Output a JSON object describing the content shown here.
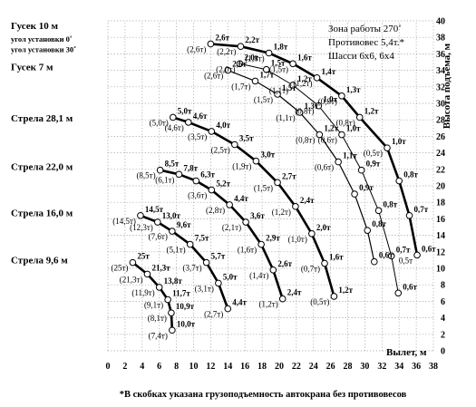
{
  "chart_data": {
    "type": "line",
    "title": "",
    "xlabel": "Вылет, м",
    "ylabel": "Высота подъема, м",
    "xlim": [
      0,
      38
    ],
    "ylim": [
      0,
      40
    ],
    "x_ticks": [
      0,
      2,
      4,
      6,
      8,
      10,
      12,
      14,
      16,
      18,
      20,
      22,
      24,
      26,
      28,
      30,
      32,
      34,
      36,
      38
    ],
    "y_ticks": [
      0,
      2,
      4,
      6,
      8,
      10,
      12,
      14,
      16,
      18,
      20,
      22,
      24,
      26,
      28,
      30,
      32,
      34,
      36,
      38,
      40
    ],
    "grid": "dotted",
    "info_lines": [
      "Зона работы 270˚",
      "Противовес 5,4т.*",
      "Шасси 6х6, 6х4"
    ],
    "footnote": "*В скобках указана грузоподъемность автокрана без противовесов",
    "boom_labels": [
      {
        "text": "Гусек 10 м",
        "y": 39
      },
      {
        "text": "угол установки 0˚",
        "y": 37.5
      },
      {
        "text": "угол установки 30˚",
        "y": 36.2
      },
      {
        "text": "Гусек 7 м",
        "y": 34
      },
      {
        "text": "Стрела 28,1 м",
        "y": 27.8
      },
      {
        "text": "Стрела 22,0 м",
        "y": 21.9
      },
      {
        "text": "Стрела 16,0 м",
        "y": 16.3
      },
      {
        "text": "Стрела 9,6 м",
        "y": 10.6
      }
    ],
    "series": [
      {
        "name": "Гусек 10 м, угол установки 0˚",
        "points": [
          {
            "x": 12,
            "y": 37.2,
            "label": "2,6т",
            "label2": "(2,6т)"
          },
          {
            "x": 15.5,
            "y": 36.9,
            "label": "2,2т",
            "label2": "(2,2т)"
          },
          {
            "x": 18.8,
            "y": 36.1,
            "label": "1,8т",
            "label2": "(1,8т)"
          },
          {
            "x": 21.6,
            "y": 34.8,
            "label": "1,6т",
            "label2": "(1,5т)"
          },
          {
            "x": 24.4,
            "y": 33.1,
            "label": "1,4т",
            "label2": "(1,2т)"
          },
          {
            "x": 27.3,
            "y": 30.9,
            "label": "1,3т",
            "label2": "(0,9т)"
          },
          {
            "x": 29.4,
            "y": 28.3,
            "label": "1,2т",
            "label2": "(0,8т)"
          },
          {
            "x": 32.6,
            "y": 24.6,
            "label": "1,0т",
            "label2": "(0,5т)"
          },
          {
            "x": 34.0,
            "y": 20.6,
            "label": "0,8т",
            "label2": ""
          },
          {
            "x": 35.2,
            "y": 16.4,
            "label": "0,7т",
            "label2": ""
          },
          {
            "x": 36.1,
            "y": 11.6,
            "label": "0,6т",
            "label2": "0,5т"
          }
        ]
      },
      {
        "name": "Гусек 10 м, угол установки 30˚",
        "points": [
          {
            "x": 15.4,
            "y": 34.8,
            "label": "2,0т",
            "label2": "(2,0т)"
          },
          {
            "x": 18.5,
            "y": 34.1,
            "label": "1,5т",
            "label2": ""
          },
          {
            "x": 21.6,
            "y": 32.2,
            "label": "1,2т",
            "label2": "(1,1т)"
          },
          {
            "x": 24.6,
            "y": 29.7,
            "label": "1,0т",
            "label2": "(0,8т)"
          },
          {
            "x": 27.3,
            "y": 26.2,
            "label": "1,0т",
            "label2": "(0,6т)"
          },
          {
            "x": 29.6,
            "y": 21.9,
            "label": "0,9т",
            "label2": ""
          },
          {
            "x": 31.6,
            "y": 17.0,
            "label": "0,8т",
            "label2": ""
          },
          {
            "x": 33.1,
            "y": 11.5,
            "label": "0,7т",
            "label2": ""
          },
          {
            "x": 33.9,
            "y": 7.0,
            "label": "0,6т",
            "label2": ""
          }
        ]
      },
      {
        "name": "Гусек 7 м",
        "points": [
          {
            "x": 14.0,
            "y": 34.0,
            "label": "2,6т",
            "label2": "(2,6т)"
          },
          {
            "x": 17.2,
            "y": 32.7,
            "label": "1,7т",
            "label2": "(1,7т)"
          },
          {
            "x": 19.8,
            "y": 31.1,
            "label": "1,5т",
            "label2": "(1,5т)"
          },
          {
            "x": 22.4,
            "y": 28.9,
            "label": "1,3т",
            "label2": "(1,1т)"
          },
          {
            "x": 24.7,
            "y": 26.2,
            "label": "1,2т",
            "label2": "(0,8т)"
          },
          {
            "x": 26.9,
            "y": 22.9,
            "label": "1,1т",
            "label2": "(0,6т)"
          },
          {
            "x": 28.8,
            "y": 19.0,
            "label": "0,9т",
            "label2": ""
          },
          {
            "x": 30.3,
            "y": 14.6,
            "label": "0,8т",
            "label2": ""
          },
          {
            "x": 31.1,
            "y": 10.8,
            "label": "0,6т",
            "label2": ""
          }
        ]
      },
      {
        "name": "Стрела 28,1 м",
        "points": [
          {
            "x": 7.6,
            "y": 28.3,
            "label": "5,0т",
            "label2": "(5,0т)"
          },
          {
            "x": 9.4,
            "y": 27.7,
            "label": "4,6т",
            "label2": "(4,6т)"
          },
          {
            "x": 12.1,
            "y": 26.6,
            "label": "4,0т",
            "label2": "(3,5т)"
          },
          {
            "x": 14.8,
            "y": 25.0,
            "label": "3,5т",
            "label2": "(2,5т)"
          },
          {
            "x": 17.3,
            "y": 23.0,
            "label": "3,0т",
            "label2": "(1,9т)"
          },
          {
            "x": 19.8,
            "y": 20.4,
            "label": "2,7т",
            "label2": "(1,5т)"
          },
          {
            "x": 21.9,
            "y": 17.5,
            "label": "2,4т",
            "label2": "(1,2т)"
          },
          {
            "x": 23.8,
            "y": 14.2,
            "label": "2,0т",
            "label2": "(1,0т)"
          },
          {
            "x": 25.3,
            "y": 10.6,
            "label": "1,6т",
            "label2": "(0,7т)"
          },
          {
            "x": 26.4,
            "y": 6.6,
            "label": "1,2т",
            "label2": "(0,5т)"
          }
        ]
      },
      {
        "name": "Стрела 22,0 м",
        "points": [
          {
            "x": 6.1,
            "y": 21.9,
            "label": "8,5т",
            "label2": "(8,5т)"
          },
          {
            "x": 8.3,
            "y": 21.4,
            "label": "7,8т",
            "label2": "(6,1т)"
          },
          {
            "x": 10.3,
            "y": 20.6,
            "label": "6,3т",
            "label2": ""
          },
          {
            "x": 12.1,
            "y": 19.5,
            "label": "5,2т",
            "label2": "(3,6т)"
          },
          {
            "x": 14.2,
            "y": 17.7,
            "label": "4,4т",
            "label2": "(2,8т)"
          },
          {
            "x": 16.1,
            "y": 15.6,
            "label": "3,6т",
            "label2": "(2,1т)"
          },
          {
            "x": 17.9,
            "y": 12.9,
            "label": "2,9т",
            "label2": "(1,6т)"
          },
          {
            "x": 19.3,
            "y": 9.8,
            "label": "2,6т",
            "label2": "(1,4т)"
          },
          {
            "x": 20.4,
            "y": 6.3,
            "label": "2,4т",
            "label2": "(1,2т)"
          }
        ]
      },
      {
        "name": "Стрела 16,0 м",
        "points": [
          {
            "x": 3.8,
            "y": 16.4,
            "label": "14,5т",
            "label2": "(14,5т)"
          },
          {
            "x": 5.8,
            "y": 15.6,
            "label": "13,0т",
            "label2": "(12,3т)"
          },
          {
            "x": 7.5,
            "y": 14.5,
            "label": "9,6т",
            "label2": "(7,6т)"
          },
          {
            "x": 9.6,
            "y": 12.9,
            "label": "7,5т",
            "label2": "(5,1т)"
          },
          {
            "x": 11.5,
            "y": 10.7,
            "label": "5,7т",
            "label2": "(3,7т)"
          },
          {
            "x": 12.9,
            "y": 8.2,
            "label": "5,0т",
            "label2": "(3,1т)"
          },
          {
            "x": 14.0,
            "y": 5.1,
            "label": "4,4т",
            "label2": "(2,7т)"
          }
        ]
      },
      {
        "name": "Стрела 9,6 м",
        "points": [
          {
            "x": 2.9,
            "y": 10.7,
            "label": "25т",
            "label2": "(25т)"
          },
          {
            "x": 4.6,
            "y": 9.3,
            "label": "21,3т",
            "label2": "(21,3т)"
          },
          {
            "x": 6.0,
            "y": 7.7,
            "label": "13,8т",
            "label2": "(11,9т)"
          },
          {
            "x": 7.0,
            "y": 6.2,
            "label": "11,7т",
            "label2": "(9,1т)"
          },
          {
            "x": 7.4,
            "y": 4.6,
            "label": "10,9т",
            "label2": "(8,1т)"
          },
          {
            "x": 7.5,
            "y": 2.5,
            "label": "10,0т",
            "label2": "(7,4т)"
          }
        ]
      }
    ]
  }
}
